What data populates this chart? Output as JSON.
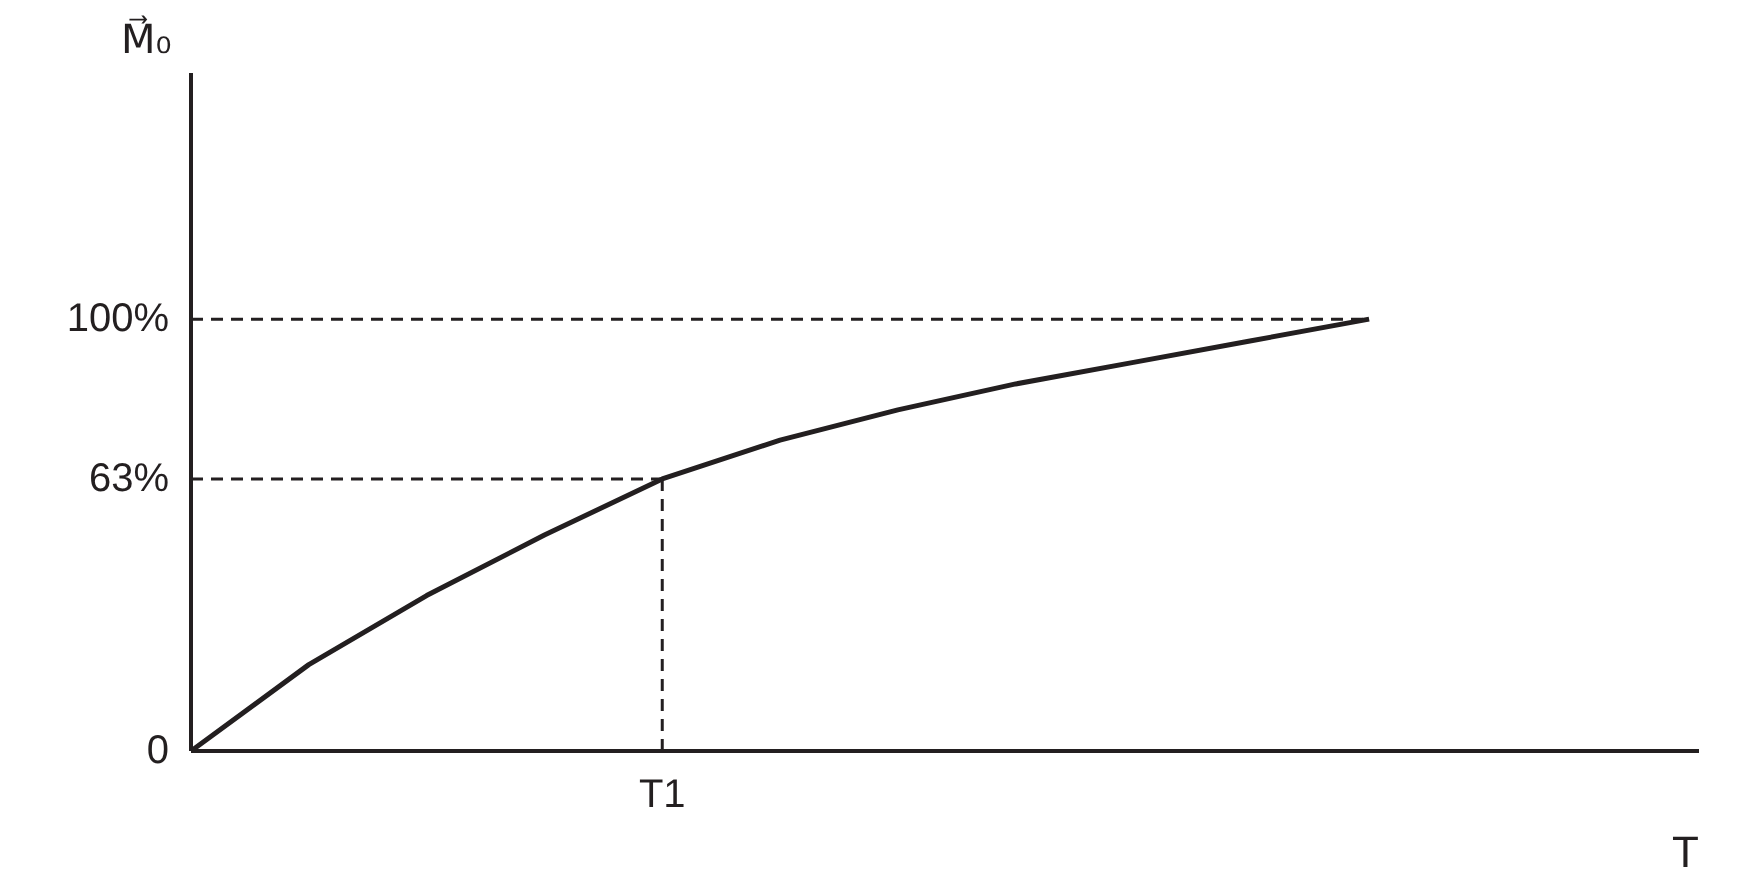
{
  "chart_data": {
    "type": "line",
    "ylabel": "M⃗₀",
    "annotations": [
      "T"
    ],
    "categories": [
      null,
      null,
      null,
      null,
      "T1",
      null,
      null,
      null,
      null,
      null,
      null
    ],
    "series": [
      {
        "color": "#231f20",
        "values": [
          0,
          20,
          36,
          50,
          63,
          72,
          79,
          85,
          90,
          95,
          100
        ]
      }
    ],
    "ylim": [
      0,
      157
    ],
    "yticks": [
      0,
      {
        "value": 63,
        "label": "63%"
      },
      {
        "value": 100,
        "label": "100%"
      }
    ],
    "ref_lines": [
      {
        "axis": "y",
        "value": 100,
        "line_style": "dashed",
        "color": "#231f20"
      },
      {
        "axis": "y",
        "value": 63,
        "line_style": "dashed",
        "color": "#231f20"
      },
      {
        "axis": "x",
        "value": "T1",
        "line_style": "dashed",
        "color": "#231f20"
      }
    ],
    "grid": false,
    "marker": "none",
    "line_style": "solid"
  }
}
